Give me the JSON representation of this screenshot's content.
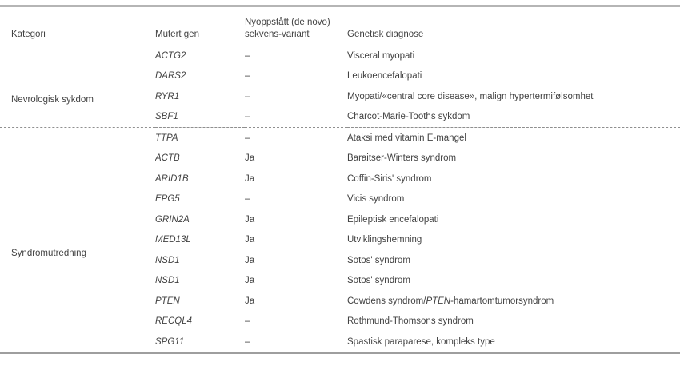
{
  "header": {
    "kategori": "Kategori",
    "mutert_gen": "Mutert gen",
    "de_novo_line1": "Nyoppstått (de novo)",
    "de_novo_line2": "sekvens-variant",
    "genetisk_diagnose": "Genetisk diagnose"
  },
  "groups": [
    {
      "category": "Nevrologisk sykdom",
      "rows": [
        {
          "gene": "ACTG2",
          "de_novo": "–",
          "diagnosis": [
            {
              "text": "Visceral myopati"
            }
          ]
        },
        {
          "gene": "DARS2",
          "de_novo": "–",
          "diagnosis": [
            {
              "text": "Leukoencefalopati"
            }
          ]
        },
        {
          "gene": "RYR1",
          "de_novo": "–",
          "diagnosis": [
            {
              "text": "Myopati/«central core disease», malign hypertermifølsomhet"
            }
          ]
        },
        {
          "gene": "SBF1",
          "de_novo": "–",
          "diagnosis": [
            {
              "text": "Charcot-Marie-Tooths sykdom"
            }
          ]
        }
      ]
    },
    {
      "category": "Syndromutredning",
      "rows": [
        {
          "gene": "TTPA",
          "de_novo": "–",
          "diagnosis": [
            {
              "text": "Ataksi med vitamin E-mangel"
            }
          ]
        },
        {
          "gene": "ACTB",
          "de_novo": "Ja",
          "diagnosis": [
            {
              "text": "Baraitser-Winters syndrom"
            }
          ]
        },
        {
          "gene": "ARID1B",
          "de_novo": "Ja",
          "diagnosis": [
            {
              "text": "Coffin-Siris' syndrom"
            }
          ]
        },
        {
          "gene": "EPG5",
          "de_novo": "–",
          "diagnosis": [
            {
              "text": "Vicis syndrom"
            }
          ]
        },
        {
          "gene": "GRIN2A",
          "de_novo": "Ja",
          "diagnosis": [
            {
              "text": "Epileptisk encefalopati"
            }
          ]
        },
        {
          "gene": "MED13L",
          "de_novo": "Ja",
          "diagnosis": [
            {
              "text": "Utviklingshemning"
            }
          ]
        },
        {
          "gene": "NSD1",
          "de_novo": "Ja",
          "diagnosis": [
            {
              "text": "Sotos' syndrom"
            }
          ]
        },
        {
          "gene": "NSD1",
          "de_novo": "Ja",
          "diagnosis": [
            {
              "text": "Sotos' syndrom"
            }
          ]
        },
        {
          "gene": "PTEN",
          "de_novo": "Ja",
          "diagnosis": [
            {
              "text": "Cowdens syndrom/"
            },
            {
              "text": "PTEN",
              "italic": true
            },
            {
              "text": "-hamartomtumorsyndrom"
            }
          ]
        },
        {
          "gene": "RECQL4",
          "de_novo": "–",
          "diagnosis": [
            {
              "text": "Rothmund-Thomsons syndrom"
            }
          ]
        },
        {
          "gene": "SPG11",
          "de_novo": "–",
          "diagnosis": [
            {
              "text": "Spastisk paraparese, kompleks type"
            }
          ]
        }
      ]
    }
  ],
  "colors": {
    "text": "#424242",
    "top_border": "#b5b5b5",
    "bottom_border": "#9e9e9e",
    "dashed_divider": "#8f8f8f",
    "background": "#ffffff"
  }
}
